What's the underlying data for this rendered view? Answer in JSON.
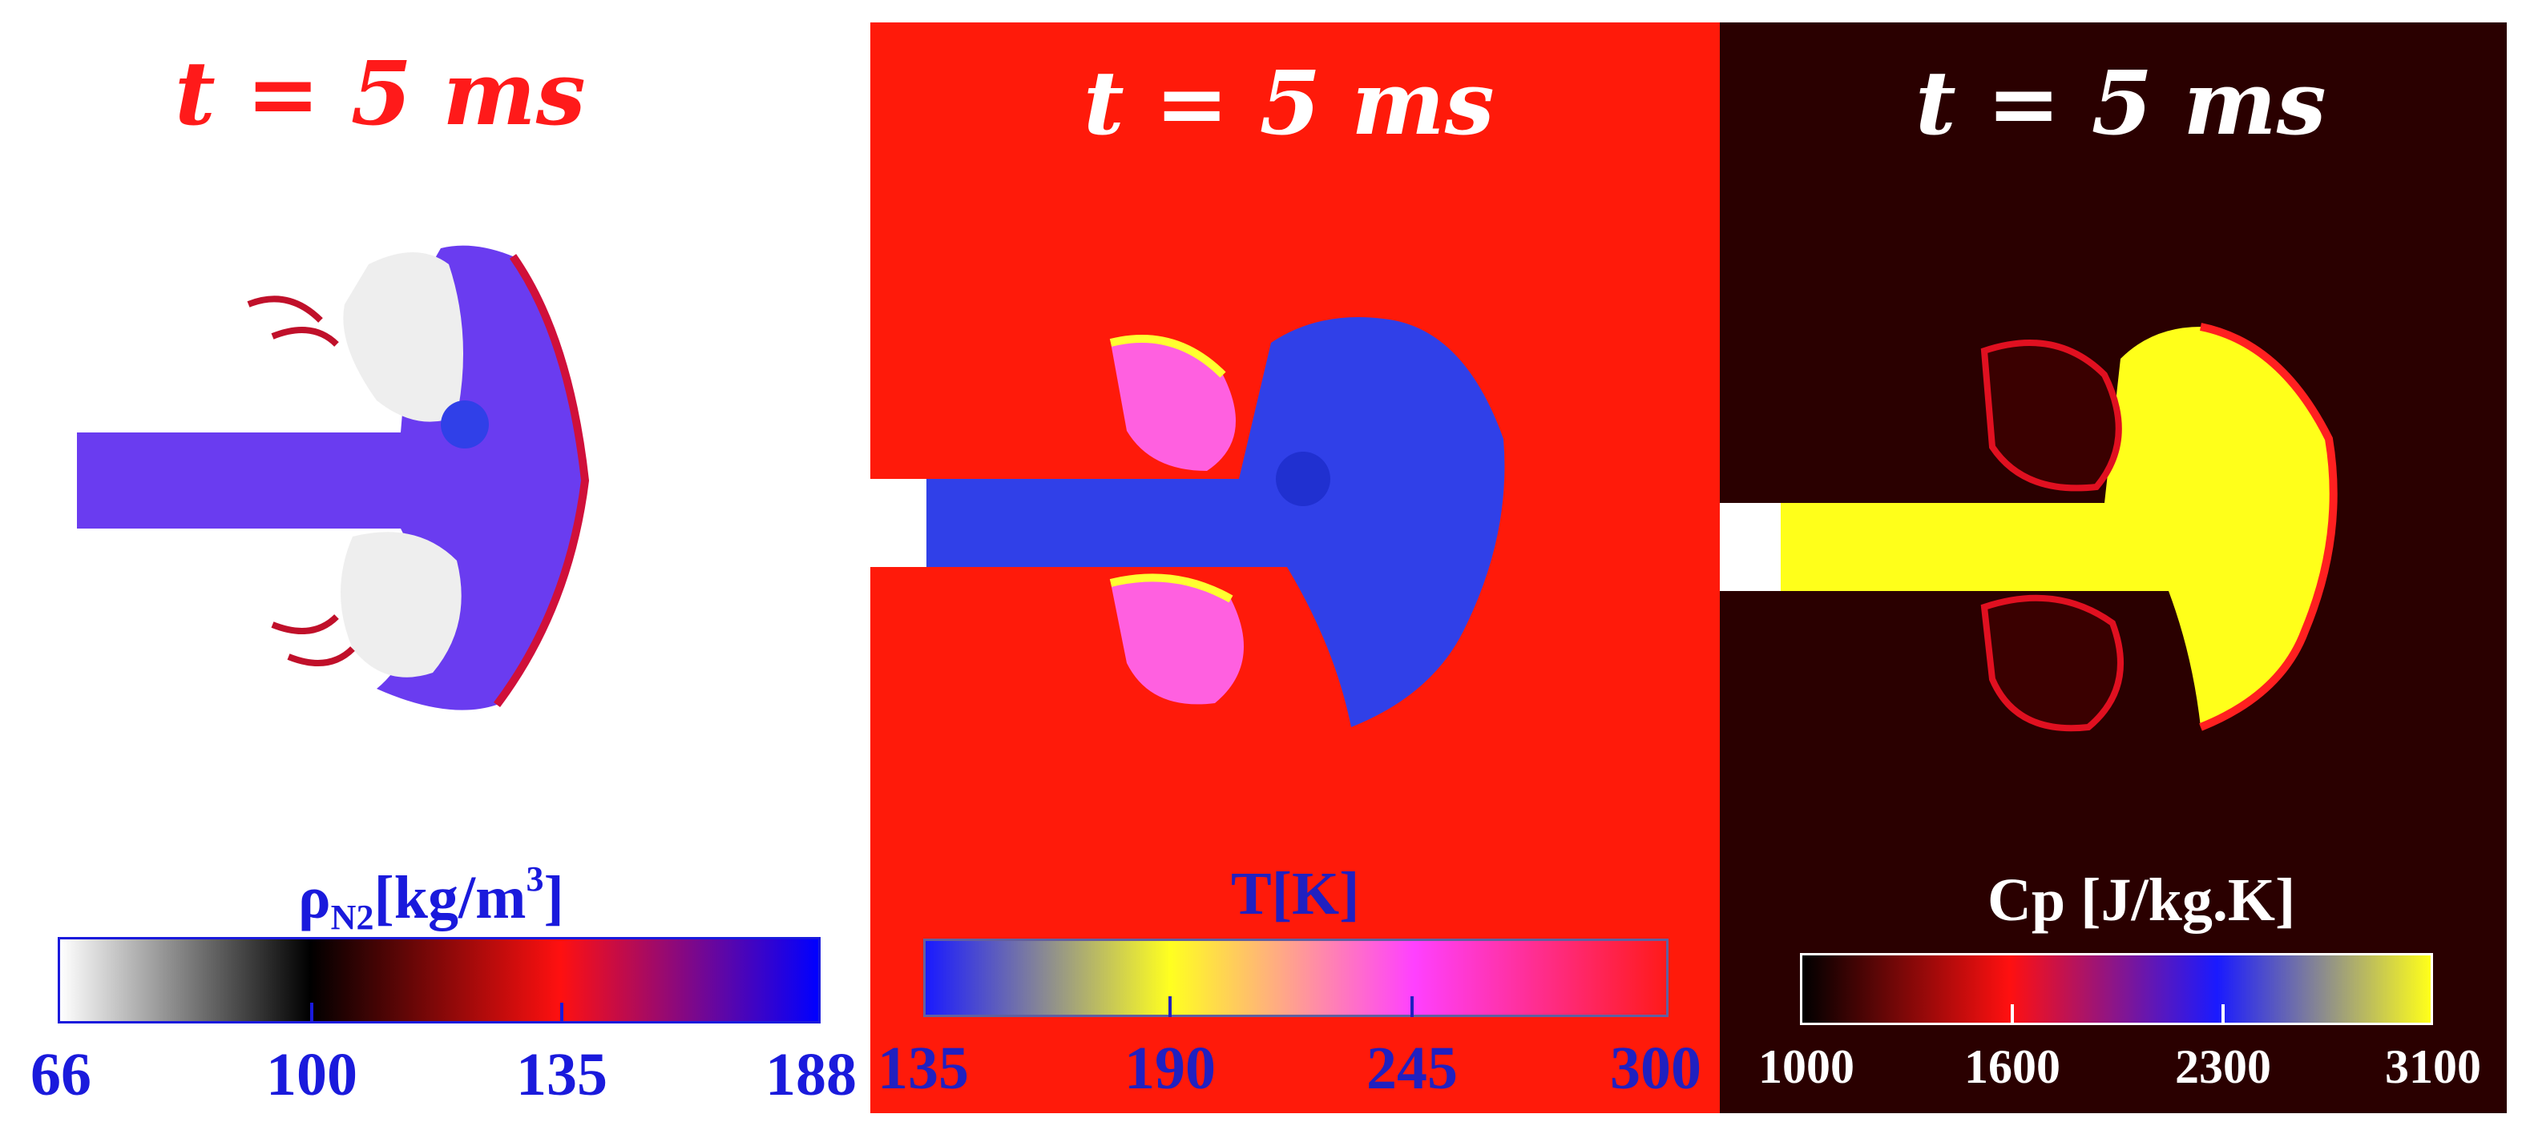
{
  "panels": [
    {
      "title": "t = 5 ms",
      "colorbar_label_main": "ρ",
      "colorbar_label_sub": "N2",
      "colorbar_label_rest": "[kg/m",
      "colorbar_label_sup": "3",
      "colorbar_label_end": "]",
      "ticks": [
        "66",
        "100",
        "135",
        "188"
      ],
      "colors": {
        "background": "#ffffff",
        "title": "#ff1a1a",
        "label": "#1a1adc",
        "jet": "#6a3cf0"
      }
    },
    {
      "title": "t = 5 ms",
      "colorbar_label": "T[K]",
      "ticks": [
        "135",
        "190",
        "245",
        "300"
      ],
      "colors": {
        "background": "#ff1a0a",
        "title": "#ffffff",
        "label": "#2020c0",
        "jet": "#3040e8"
      }
    },
    {
      "title": "t = 5 ms",
      "colorbar_label": "Cp [J/kg.K]",
      "ticks": [
        "1000",
        "1600",
        "2300",
        "3100"
      ],
      "colors": {
        "background": "#2a0000",
        "title": "#ffffff",
        "label": "#ffffff",
        "jet": "#ffff1a"
      }
    }
  ]
}
